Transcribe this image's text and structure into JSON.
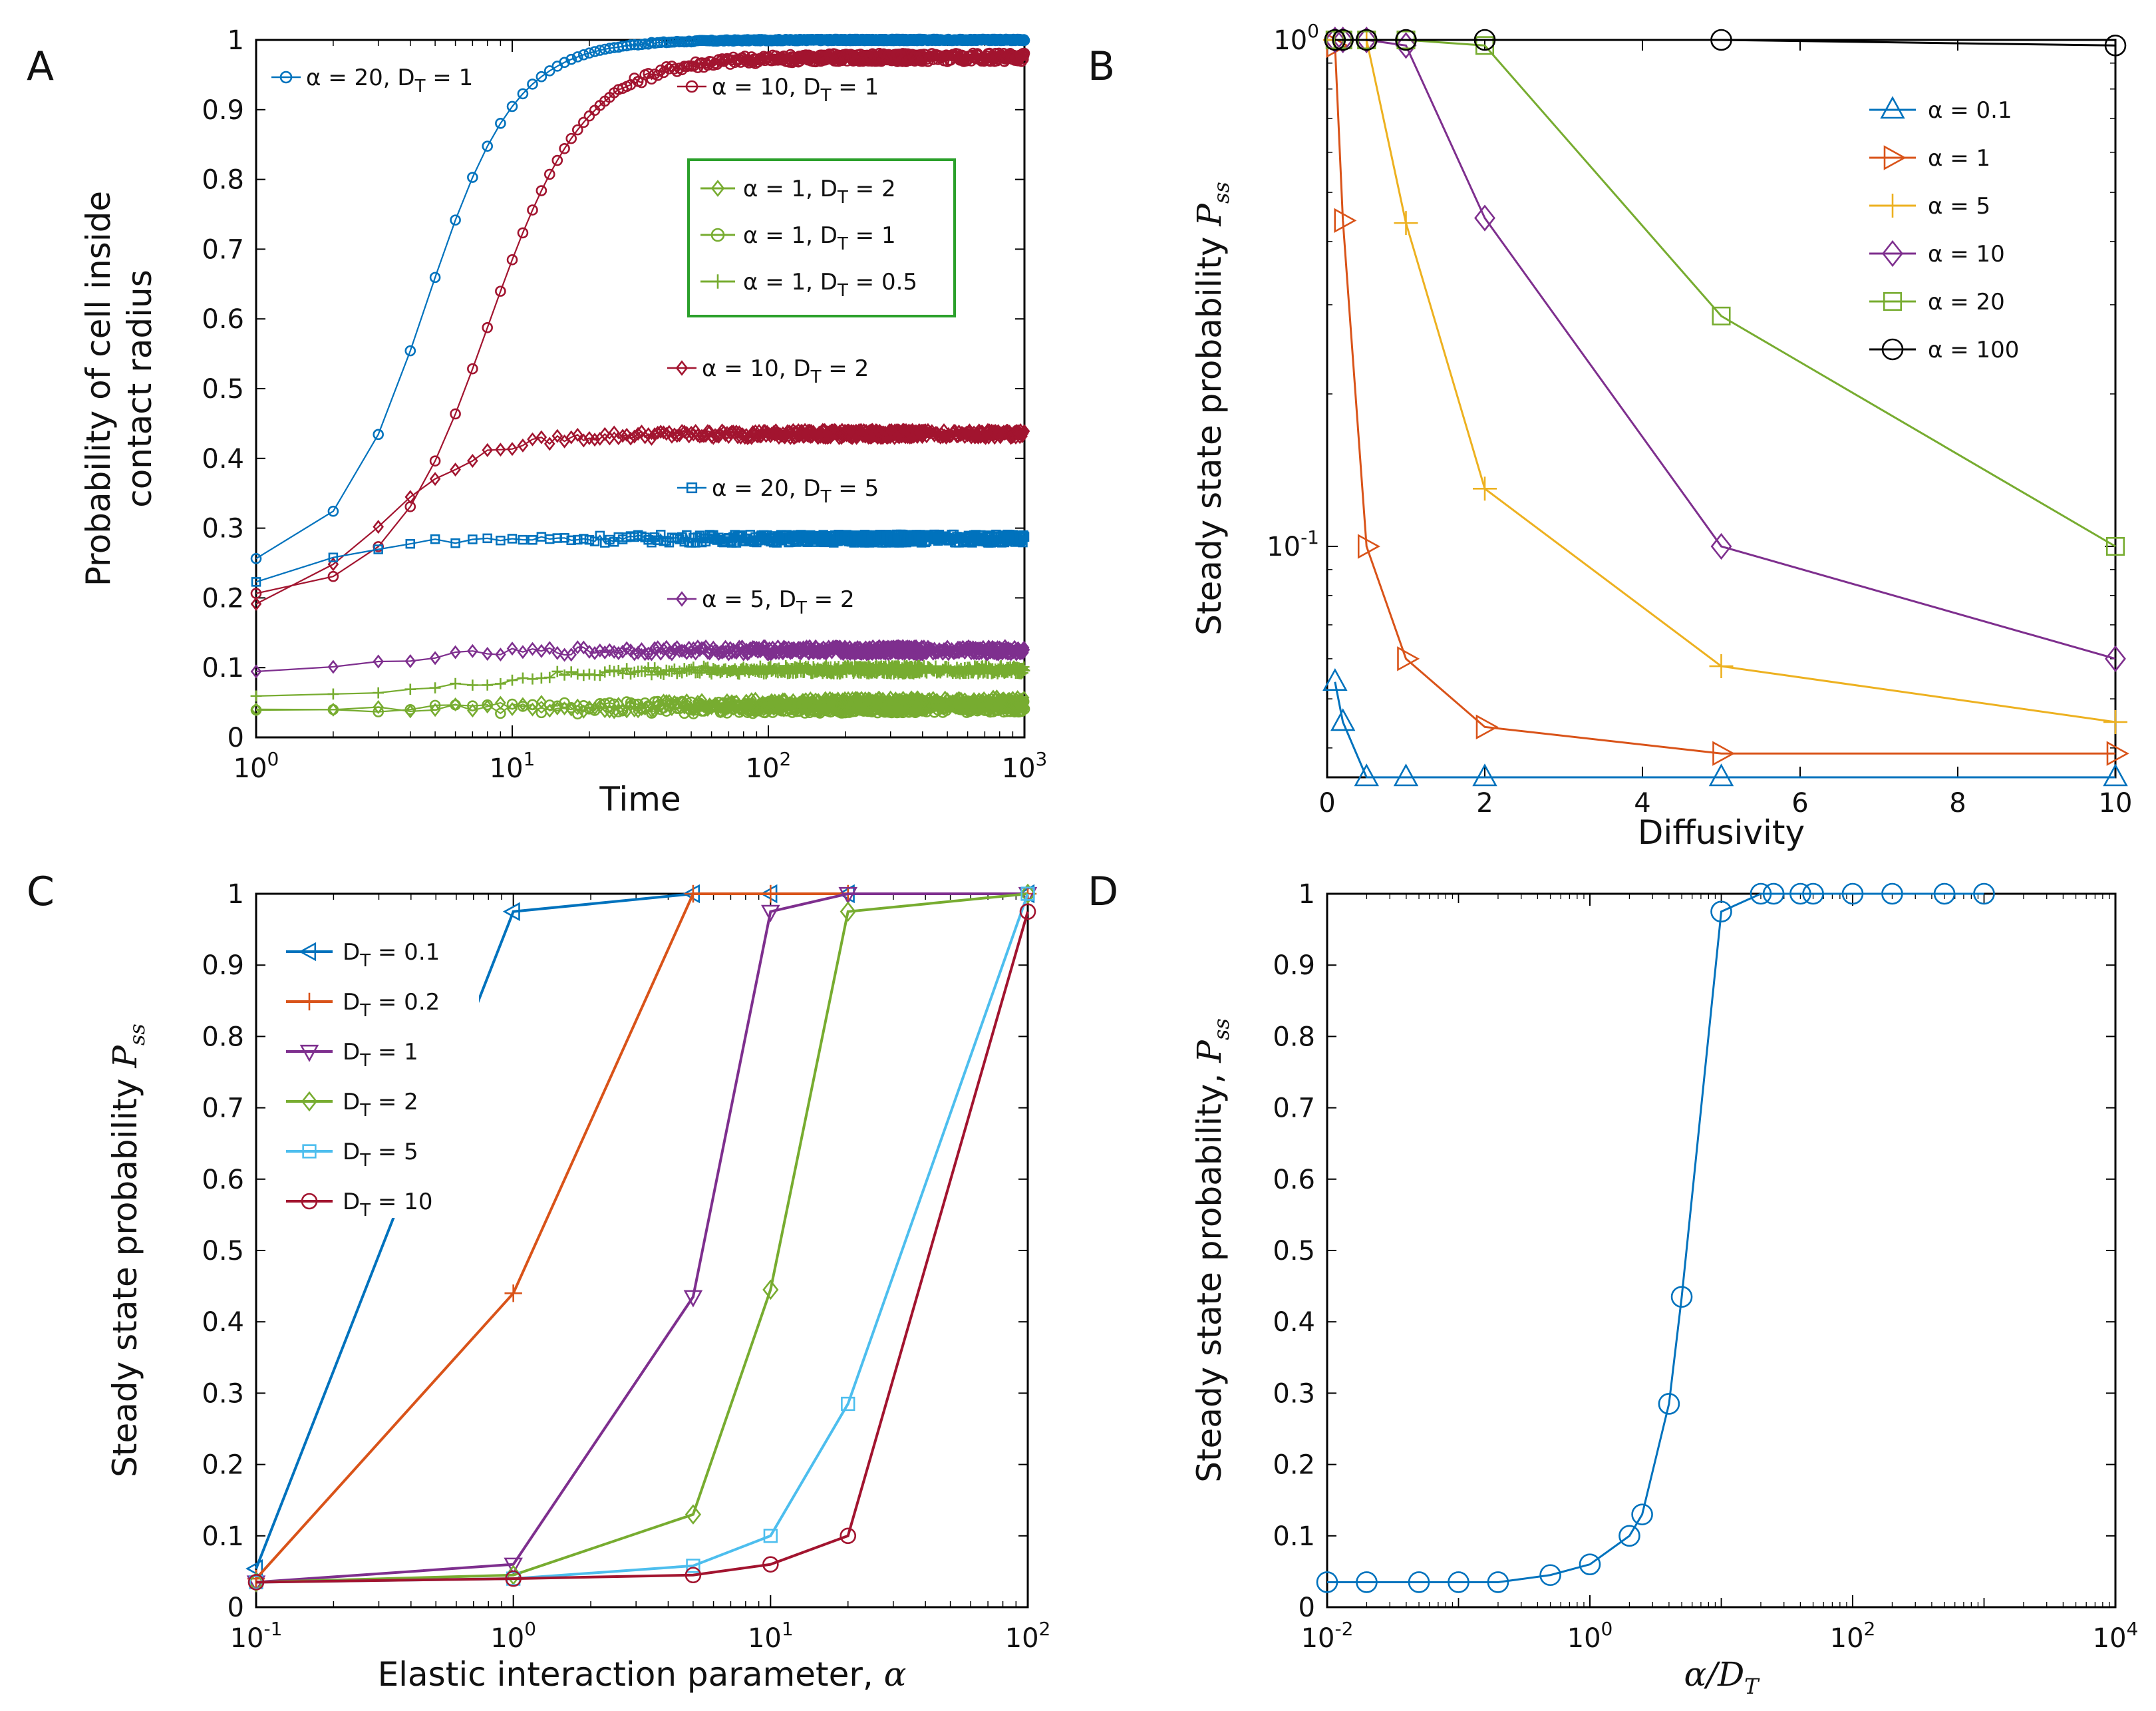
{
  "chart_data": [
    {
      "panel": "A",
      "type": "line",
      "xscale": "log",
      "xlim": [
        1,
        1000
      ],
      "ylim": [
        0,
        1
      ],
      "xlabel": "Time",
      "ylabel": [
        "Probability of cell inside",
        "contact radius"
      ],
      "x_ticks": [
        {
          "value": 1,
          "base": "10",
          "exp": "0"
        },
        {
          "value": 10,
          "base": "10",
          "exp": "1"
        },
        {
          "value": 100,
          "base": "10",
          "exp": "2"
        },
        {
          "value": 1000,
          "base": "10",
          "exp": "3"
        }
      ],
      "y_ticks": [
        "0",
        "0.1",
        "0.2",
        "0.3",
        "0.4",
        "0.5",
        "0.6",
        "0.7",
        "0.8",
        "0.9",
        "1"
      ],
      "legend_box": [
        "alpha_1_DT_2",
        "alpha_1_DT_1",
        "alpha_1_DT_0.5"
      ],
      "series": [
        {
          "id": "alpha_20_DT_1",
          "alpha": "20",
          "dt": "1",
          "color": "#0072BD",
          "marker": "circle",
          "curve": {
            "type": "sigmoid",
            "start": 0.24,
            "end": 1.0,
            "t50": 4.6,
            "p": 2.5
          },
          "label_pos": "top-left"
        },
        {
          "id": "alpha_10_DT_1",
          "alpha": "10",
          "dt": "1",
          "color": "#A2142F",
          "marker": "circle",
          "curve": {
            "type": "sigmoid",
            "start": 0.2,
            "end": 0.975,
            "t50": 8.0,
            "p": 2.3
          },
          "label_pos": "top-right"
        },
        {
          "id": "alpha_10_DT_2",
          "alpha": "10",
          "dt": "2",
          "color": "#A2142F",
          "marker": "diamond",
          "curve": {
            "type": "sigmoid",
            "start": 0.17,
            "end": 0.435,
            "t50": 3.0,
            "p": 2.2
          },
          "label_pos": "right"
        },
        {
          "id": "alpha_20_DT_5",
          "alpha": "20",
          "dt": "5",
          "color": "#0072BD",
          "marker": "square",
          "curve": {
            "type": "sigmoid",
            "start": 0.2,
            "end": 0.285,
            "t50": 1.5,
            "p": 2.5
          },
          "label_pos": "right"
        },
        {
          "id": "alpha_5_DT_2",
          "alpha": "5",
          "dt": "2",
          "color": "#7E2F8E",
          "marker": "diamond",
          "curve": {
            "type": "sigmoid",
            "start": 0.09,
            "end": 0.125,
            "t50": 3.0,
            "p": 2.0
          },
          "label_pos": "right"
        },
        {
          "id": "alpha_1_DT_0.5",
          "alpha": "1",
          "dt": "0.5",
          "color": "#77AC30",
          "marker": "plus",
          "curve": {
            "type": "sigmoid",
            "start": 0.06,
            "end": 0.097,
            "t50": 8.0,
            "p": 2.0
          },
          "label_pos": "legend"
        },
        {
          "id": "alpha_1_DT_1",
          "alpha": "1",
          "dt": "1",
          "color": "#77AC30",
          "marker": "circle",
          "curve": {
            "type": "flat",
            "start": 0.04,
            "end": 0.045
          },
          "label_pos": "legend"
        },
        {
          "id": "alpha_1_DT_2",
          "alpha": "1",
          "dt": "2",
          "color": "#77AC30",
          "marker": "diamond",
          "curve": {
            "type": "flat",
            "start": 0.04,
            "end": 0.05
          },
          "label_pos": "legend"
        }
      ]
    },
    {
      "panel": "B",
      "type": "line",
      "yscale": "log",
      "xlim": [
        0,
        10
      ],
      "ylim": [
        0.035,
        1.0
      ],
      "xlabel": "Diffusivity",
      "ylabel": "Steady state probability",
      "ylabel_symbol": "P",
      "ylabel_sub": "ss",
      "x_ticks": [
        "0",
        "2",
        "4",
        "6",
        "8",
        "10"
      ],
      "y_ticks": [
        {
          "value": 0.1,
          "base": "10",
          "exp": "-1"
        },
        {
          "value": 1,
          "base": "10",
          "exp": "0"
        }
      ],
      "legend_pos": "top-right",
      "x": [
        0.1,
        0.2,
        0.5,
        1,
        2,
        5,
        10
      ],
      "series": [
        {
          "name": "α = 0.1",
          "color": "#0072BD",
          "marker": "triangle-up",
          "values": [
            0.054,
            0.045,
            0.035,
            0.035,
            0.035,
            0.035,
            0.035
          ]
        },
        {
          "name": "α = 1",
          "color": "#D95319",
          "marker": "triangle-right",
          "values": [
            0.975,
            0.44,
            0.1,
            0.06,
            0.044,
            0.039,
            0.039
          ]
        },
        {
          "name": "α = 5",
          "color": "#EDB120",
          "marker": "plus",
          "values": [
            1.0,
            1.0,
            1.0,
            0.435,
            0.13,
            0.058,
            0.045
          ]
        },
        {
          "name": "α = 10",
          "color": "#7E2F8E",
          "marker": "diamond",
          "values": [
            1.0,
            1.0,
            1.0,
            0.975,
            0.445,
            0.1,
            0.06
          ]
        },
        {
          "name": "α = 20",
          "color": "#77AC30",
          "marker": "square",
          "values": [
            1.0,
            1.0,
            1.0,
            1.0,
            0.975,
            0.285,
            0.1
          ]
        },
        {
          "name": "α = 100",
          "color": "#000000",
          "marker": "circle",
          "values": [
            1.0,
            1.0,
            1.0,
            1.0,
            1.0,
            1.0,
            0.975
          ]
        }
      ]
    },
    {
      "panel": "C",
      "type": "line",
      "xscale": "log",
      "xlim": [
        0.1,
        100
      ],
      "ylim": [
        0,
        1
      ],
      "xlabel": "Elastic interaction parameter,",
      "xlabel_symbol": "α",
      "ylabel": "Steady state probability",
      "ylabel_symbol": "P",
      "ylabel_sub": "ss",
      "x_ticks": [
        {
          "value": 0.1,
          "base": "10",
          "exp": "-1"
        },
        {
          "value": 1,
          "base": "10",
          "exp": "0"
        },
        {
          "value": 10,
          "base": "10",
          "exp": "1"
        },
        {
          "value": 100,
          "base": "10",
          "exp": "2"
        }
      ],
      "y_ticks": [
        "0",
        "0.1",
        "0.2",
        "0.3",
        "0.4",
        "0.5",
        "0.6",
        "0.7",
        "0.8",
        "0.9",
        "1"
      ],
      "legend_pos": "top-left",
      "x": [
        0.1,
        1,
        5,
        10,
        20,
        100
      ],
      "series": [
        {
          "name": "D",
          "sub": "T",
          "value_label": "= 0.1",
          "color": "#0072BD",
          "marker": "triangle-left",
          "values": [
            0.054,
            0.975,
            1.0,
            1.0,
            1.0,
            1.0
          ]
        },
        {
          "name": "D",
          "sub": "T",
          "value_label": "= 0.2",
          "color": "#D95319",
          "marker": "plus",
          "values": [
            0.04,
            0.44,
            1.0,
            1.0,
            1.0,
            1.0
          ]
        },
        {
          "name": "D",
          "sub": "T",
          "value_label": "= 1",
          "color": "#7E2F8E",
          "marker": "triangle-down",
          "values": [
            0.035,
            0.06,
            0.435,
            0.975,
            1.0,
            1.0
          ]
        },
        {
          "name": "D",
          "sub": "T",
          "value_label": "= 2",
          "color": "#77AC30",
          "marker": "diamond",
          "values": [
            0.035,
            0.045,
            0.13,
            0.445,
            0.975,
            1.0
          ]
        },
        {
          "name": "D",
          "sub": "T",
          "value_label": "= 5",
          "color": "#4DBEEE",
          "marker": "square",
          "values": [
            0.035,
            0.04,
            0.058,
            0.1,
            0.285,
            1.0
          ]
        },
        {
          "name": "D",
          "sub": "T",
          "value_label": "= 10",
          "color": "#A2142F",
          "marker": "circle",
          "values": [
            0.035,
            0.04,
            0.045,
            0.06,
            0.1,
            0.975
          ]
        }
      ]
    },
    {
      "panel": "D",
      "type": "line",
      "xscale": "log",
      "xlim": [
        0.01,
        10000
      ],
      "ylim": [
        0,
        1
      ],
      "xlabel_symbol": "α/D",
      "xlabel_sub": "T",
      "ylabel": "Steady state probability,",
      "ylabel_symbol": "P",
      "ylabel_sub": "ss",
      "x_ticks": [
        {
          "value": 0.01,
          "base": "10",
          "exp": "-2"
        },
        {
          "value": 1,
          "base": "10",
          "exp": "0"
        },
        {
          "value": 100,
          "base": "10",
          "exp": "2"
        },
        {
          "value": 10000,
          "base": "10",
          "exp": "4"
        }
      ],
      "y_ticks": [
        "0",
        "0.1",
        "0.2",
        "0.3",
        "0.4",
        "0.5",
        "0.6",
        "0.7",
        "0.8",
        "0.9",
        "1"
      ],
      "series": [
        {
          "name": "P_ss vs α/D_T",
          "color": "#0072BD",
          "marker": "circle",
          "x": [
            0.01,
            0.02,
            0.05,
            0.1,
            0.2,
            0.5,
            1,
            2,
            2.5,
            4,
            5,
            10,
            20,
            25,
            40,
            50,
            100,
            200,
            500,
            1000
          ],
          "values": [
            0.035,
            0.035,
            0.035,
            0.035,
            0.035,
            0.045,
            0.06,
            0.1,
            0.13,
            0.285,
            0.435,
            0.975,
            1.0,
            1.0,
            1.0,
            1.0,
            1.0,
            1.0,
            1.0,
            1.0
          ]
        }
      ]
    }
  ],
  "panel_letters": [
    "A",
    "B",
    "C",
    "D"
  ]
}
